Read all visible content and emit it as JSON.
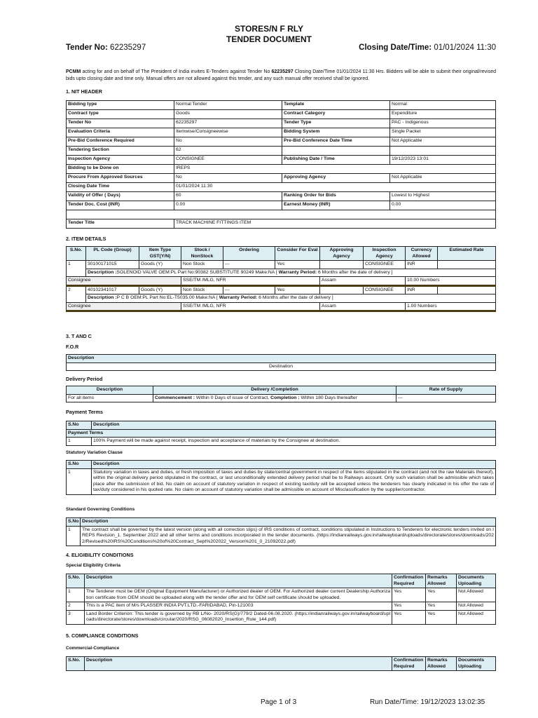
{
  "header": {
    "org": "STORES/N F RLY",
    "doc_title": "TENDER DOCUMENT",
    "tender_no_label": "Tender No:",
    "tender_no": "62235297",
    "closing_label": "Closing Date/Time:",
    "closing": "01/01/2024 11:30"
  },
  "intro": {
    "lead": "PCMM",
    "text1": " acting for and on behalf of The President of India invites E-Tenders against Tender No ",
    "tender": "62235297",
    "text2": " Closing Date/Time 01/01/2024 11:30 Hrs. Bidders will be able to submit their original/revised bids upto closing date and time only. Manual offers are not allowed against this tender, and any such manual offer received shall be ignored."
  },
  "nit": {
    "heading": "1. NIT HEADER",
    "rows": [
      [
        "Bidding type",
        "Normal Tender",
        "Template",
        "Normal"
      ],
      [
        "Contract type",
        "Goods",
        "Contract Category",
        "Expenditure"
      ],
      [
        "Tender No",
        "62235297",
        "Tender Type",
        "PAC - Indigenous"
      ],
      [
        "Evaluation Criteria",
        "Itemwise/Consigneewise",
        "Bidding System",
        "Single Packet"
      ],
      [
        "Pre-Bid Conference Required",
        "No",
        "Pre-Bid Conference Date Time",
        "Not Applicable"
      ],
      [
        "Tendering Section",
        "62",
        "",
        ""
      ],
      [
        "Inspection Agency",
        "CONSIGNEE",
        "Publishing Date / Time",
        "19/12/2023 13:01"
      ],
      [
        "Bidding to be Done on",
        "IREPS"
      ],
      [
        "Procure From Approved Sources",
        "No",
        "Approving Agency",
        "Not Applicable"
      ],
      [
        "Closing Date Time",
        "01/01/2024 11:30"
      ],
      [
        "Validity of Offer ( Days)",
        "60",
        "Ranking Order for Bids",
        "Lowest to Highest"
      ],
      [
        "Tender Doc. Cost (INR)",
        "0.00",
        "Earnest Money (INR)",
        "0.00"
      ],
      [],
      [
        "Tender Title",
        "TRACK MACHINE FITTINGS ITEM"
      ]
    ]
  },
  "items": {
    "heading": "2. ITEM DETAILS",
    "columns": [
      "S.No.",
      "PL Code (Group)",
      "Item Type GST(Y/N)",
      "Stock / NonStock",
      "Ordering",
      "Consider For Eval",
      "Approving Agency",
      "Inspection Agency",
      "Currency Allowed",
      "Estimated Rate"
    ],
    "rows": [
      {
        "cells": [
          "1",
          "30100171015",
          "Goods (Y)",
          "Non Stock",
          "---",
          "Yes",
          "",
          "CONSIGNEE",
          "INR",
          ""
        ],
        "desc_label": "Description :",
        "desc": "SOLENOID VALVE OEM:PL Part No:90382 SUBSTITUTE 90249 Make:NA [ ",
        "warranty_label": "Warranty Period:",
        "warranty": " 6 Months after the date of delivery ]",
        "consignee_label": "Consignee",
        "consignee": "SSE/TM /MLG, NFR",
        "state": "Assam",
        "qty": "10.00 Numbers"
      },
      {
        "cells": [
          "2",
          "40102341017",
          "Goods (Y)",
          "Non Stock",
          "---",
          "Yes",
          "",
          "CONSIGNEE",
          "INR",
          ""
        ],
        "desc_label": "Description :",
        "desc": "P C B OEM:PL Part No:EL-T5035.00 Make:NA [ ",
        "warranty_label": "Warranty Period:",
        "warranty": " 6 Months after the date of delivery ]",
        "consignee_label": "Consignee",
        "consignee": "SSE/TM /MLG, NFR",
        "state": "Assam",
        "qty": "1.00 Numbers"
      }
    ]
  },
  "tandc": {
    "heading": "3. T AND C",
    "for_label": "F.O.R",
    "for_col": "Description",
    "for_value": "Destination",
    "delivery_label": "Delivery Period",
    "delivery_cols": [
      "Description",
      "Delivery /Completion",
      "Rate of Supply"
    ],
    "delivery_row": {
      "desc": "For all items",
      "c1": "Commencement :",
      "c1v": " Within 0 Days of issue of Contract, ",
      "c2": "Completion :",
      "c2v": " Within 180 Days thereafter",
      "rate": "---"
    },
    "payment_label": "Payment Terms",
    "payment_cols": [
      "S.No",
      "Description"
    ],
    "payment_sub": "Payment Terms",
    "payment_row": [
      "1",
      "100% Payment will be made against receipt, inspection and acceptance of materials by the Consignee at destination."
    ],
    "svc_label": "Statutory Variation Clause",
    "svc_cols": [
      "S.No",
      "Description"
    ],
    "svc_row": [
      "1",
      "Statutory variation in taxes and duties, or fresh imposition of taxes and duties by state/central government in respect of the items stipulated in the contract (and not the raw Materials thereof), within the original delivery period stipulated in the contract, or last unconditionally extended delivery period shall be to Railways account. Only such variation shall be admissible which takes place after the submission of bid. No claim on account of statutory variation in respect of existing tax/duty will be accepted unless the tenderers has clearly indicated in his offer the rate of tax/duty considered in his quoted rate. No claim on account of statutory variation shall be admissible on account of Misclassification by the supplier/contractor."
    ],
    "sgc_label": "Standard Governing Conditions",
    "sgc_cols": [
      "S.No",
      "Description"
    ],
    "sgc_row": [
      "1",
      "The contract shall be governed by the latest version (along with all correction slips) of IRS conditions of contract, conditions stipulated in Instructions to Tenderers for electronic tenders invited on IREPS Revision_1. September 2022 and all other terms and conditions incorporated in the tender documents. (https://indianrailways.gov.in/railwayboard/uploads/directorate/stores/downloads/2022/Revised%20IRS%20Conditions%20of%20Contract_Sept%202022_Version%201_0_21092022.pdf)"
    ]
  },
  "eligibility": {
    "heading": "4. ELIGIBILITY CONDITIONS",
    "sub": "Special Eligibility Criteria",
    "cols": [
      "S.No.",
      "Description",
      "Confirmation Required",
      "Remarks Allowed",
      "Documents Uploading"
    ],
    "rows": [
      [
        "1",
        "The Tenderer must be OEM (Original Equipment Manufacturer) or Authorized dealer of OEM. For Authorized dealer current Dealership Authorization certificate from OEM should be uploaded along with the tender offer and for OEM self certificate should be uploaded.",
        "Yes",
        "Yes",
        "Not Allowed"
      ],
      [
        "2",
        "This is a PAC item of M/s PLASSER INDIA PVT.LTD.-FARIDABAD, Pin-121003",
        "Yes",
        "Yes",
        "Not Allowed"
      ],
      [
        "3",
        "Land Border Criterion: This tender is governed by RB L/No- 2020/RS(G)/779/2 Dated-06.08.2020. (https://indianrailways.gov.in/railwayboard/uploads/directorate/stores/downloads/circular/2020/RSG_06082020_Insertion_Rule_144.pdf)",
        "Yes",
        "Yes",
        "Not Allowed"
      ]
    ]
  },
  "compliance": {
    "heading": "5. COMPLIANCE CONDITIONS",
    "sub": "Commercial-Compliance",
    "cols": [
      "S.No.",
      "Description",
      "Confirmation Required",
      "Remarks Allowed",
      "Documents Uploading"
    ]
  },
  "footer": {
    "page": "Page 1 of 3",
    "run": "Run Date/Time: 19/12/2023 13:02:35"
  }
}
